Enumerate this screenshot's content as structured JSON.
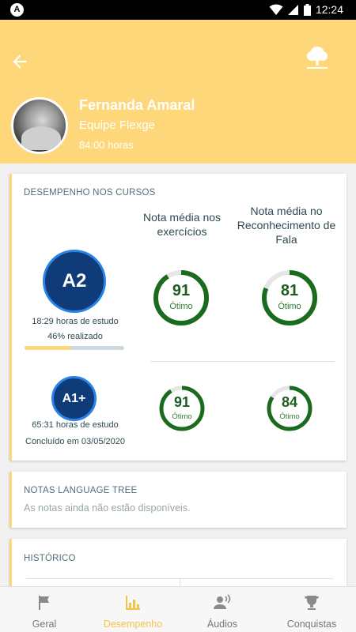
{
  "status_bar": {
    "time": "12:24"
  },
  "colors": {
    "accent": "#fdd77a",
    "level": "#0f3c79",
    "gauge": "#1b6b1e"
  },
  "profile": {
    "name": "Fernanda Amaral",
    "team": "Equipe Flexge",
    "hours": "84:00 horas"
  },
  "performance": {
    "title": "DESEMPENHO NOS CURSOS",
    "col_exercises": "Nota média nos exercícios",
    "col_speech": "Nota média no Reconhecimento de Fala",
    "courses": [
      {
        "level": "A2",
        "study_hours": "18:29 horas de estudo",
        "status": "46% realizado",
        "progress_percent": 46,
        "exercise_score": "91",
        "exercise_score_value": 91,
        "exercise_label": "Ótimo",
        "speech_score": "81",
        "speech_score_value": 81,
        "speech_label": "Ótimo"
      },
      {
        "level": "A1+",
        "study_hours": "65:31 horas de estudo",
        "status": "Concluído em 03/05/2020",
        "exercise_score": "91",
        "exercise_score_value": 91,
        "exercise_label": "Ótimo",
        "speech_score": "84",
        "speech_score_value": 84,
        "speech_label": "Ótimo"
      }
    ]
  },
  "language_tree": {
    "title": "NOTAS LANGUAGE TREE",
    "message": "As notas ainda não estão disponíveis."
  },
  "history": {
    "title": "HISTÓRICO"
  },
  "tabs": [
    {
      "label": "Geral",
      "icon": "flag-icon",
      "active": false
    },
    {
      "label": "Desempenho",
      "icon": "bar-chart-icon",
      "active": true
    },
    {
      "label": "Áudios",
      "icon": "speaking-person-icon",
      "active": false
    },
    {
      "label": "Conquistas",
      "icon": "trophy-icon",
      "active": false
    }
  ]
}
